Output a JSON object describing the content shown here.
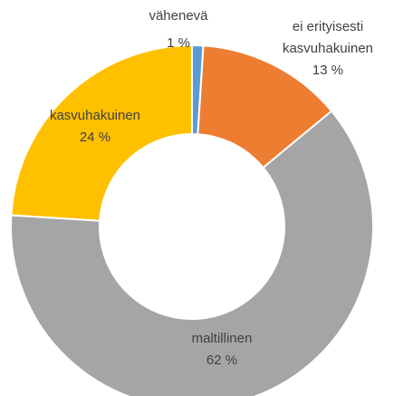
{
  "chart_data": {
    "type": "donut",
    "categories": [
      "vähenevä",
      "ei erityisesti kasvuhakuinen",
      "maltillinen",
      "kasvuhakuinen"
    ],
    "values": [
      1,
      13,
      62,
      24
    ],
    "value_labels": [
      "1 %",
      "13 %",
      "62 %",
      "24 %"
    ],
    "colors": [
      "#5b9bd5",
      "#ed7d31",
      "#a5a5a5",
      "#ffc000"
    ]
  }
}
